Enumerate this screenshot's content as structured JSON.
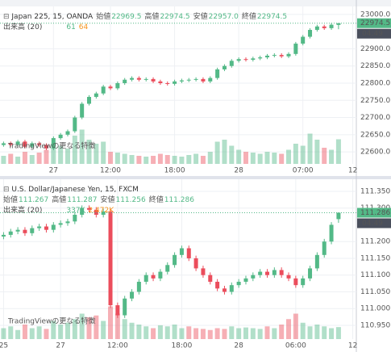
{
  "chart_data": [
    {
      "type": "candlestick",
      "title": "Japan 225, 15, OANDA",
      "ohlc_names": [
        "始値",
        "高値",
        "安値",
        "終値"
      ],
      "ohlc_labels": [
        "22969.5",
        "22974.5",
        "22957.0",
        "22974.5"
      ],
      "volume_title": "出来高 (20)",
      "volume_labels": [
        "61",
        "64"
      ],
      "promo": "TradingViewの更なる特徴",
      "last_label": "22974.5",
      "countdown": "04:49",
      "up_color": "#53b987",
      "down_color": "#eb4d5c",
      "open": [
        22620,
        22625,
        22620,
        22630,
        22615,
        22625,
        22620,
        22610,
        22640,
        22650,
        22660,
        22700,
        22740,
        22760,
        22770,
        22790,
        22785,
        22800,
        22810,
        22815,
        22810,
        22812,
        22805,
        22800,
        22798,
        22805,
        22808,
        22810,
        22812,
        22805,
        22815,
        22840,
        22850,
        22865,
        22870,
        22868,
        22872,
        22875,
        22880,
        22882,
        22878,
        22885,
        22915,
        22935,
        22955,
        22965,
        22960,
        22969.5
      ],
      "high": [
        22630,
        22630,
        22635,
        22635,
        22630,
        22630,
        22625,
        22645,
        22655,
        22665,
        22705,
        22745,
        22765,
        22775,
        22795,
        22795,
        22805,
        22815,
        22820,
        22820,
        22817,
        22817,
        22810,
        22805,
        22810,
        22813,
        22815,
        22817,
        22817,
        22820,
        22845,
        22855,
        22870,
        22875,
        22875,
        22877,
        22880,
        22885,
        22887,
        22887,
        22890,
        22920,
        22940,
        22960,
        22970,
        22970,
        22975,
        22974.5
      ],
      "low": [
        22615,
        22615,
        22615,
        22610,
        22610,
        22615,
        22605,
        22605,
        22635,
        22645,
        22655,
        22695,
        22735,
        22755,
        22765,
        22780,
        22780,
        22795,
        22805,
        22805,
        22805,
        22800,
        22795,
        22793,
        22793,
        22800,
        22803,
        22805,
        22800,
        22800,
        22810,
        22835,
        22845,
        22860,
        22863,
        22863,
        22867,
        22870,
        22875,
        22873,
        22873,
        22880,
        22910,
        22930,
        22950,
        22955,
        22955,
        22957
      ],
      "close": [
        22625,
        22620,
        22630,
        22615,
        22625,
        22620,
        22610,
        22640,
        22650,
        22660,
        22700,
        22740,
        22760,
        22770,
        22790,
        22785,
        22800,
        22810,
        22815,
        22810,
        22812,
        22805,
        22800,
        22798,
        22805,
        22808,
        22810,
        22812,
        22805,
        22815,
        22840,
        22850,
        22865,
        22870,
        22868,
        22872,
        22875,
        22880,
        22882,
        22878,
        22885,
        22915,
        22935,
        22955,
        22965,
        22960,
        22970,
        22974.5
      ],
      "volume": [
        20,
        25,
        18,
        30,
        22,
        28,
        35,
        40,
        45,
        38,
        70,
        85,
        60,
        50,
        55,
        30,
        28,
        25,
        22,
        20,
        18,
        20,
        25,
        22,
        20,
        18,
        22,
        25,
        20,
        30,
        55,
        60,
        45,
        35,
        30,
        28,
        25,
        30,
        28,
        25,
        35,
        50,
        45,
        75,
        60,
        40,
        35,
        61
      ],
      "vlim": [
        0,
        100
      ],
      "ylim": [
        22565,
        23042
      ],
      "yticks": [
        {
          "value": 23000,
          "label": "23000.0"
        },
        {
          "value": 22900,
          "label": "22900.0"
        },
        {
          "value": 22850,
          "label": "22850.0"
        },
        {
          "value": 22800,
          "label": "22800.0"
        },
        {
          "value": 22750,
          "label": "22750.0"
        },
        {
          "value": 22700,
          "label": "22700.0"
        },
        {
          "value": 22650,
          "label": "22650.0"
        },
        {
          "value": 22600,
          "label": "22600.0"
        }
      ],
      "xlim": [
        -0.5,
        49.5
      ],
      "xticks": [
        {
          "value": 7,
          "label": "27"
        },
        {
          "value": 15,
          "label": "12:00"
        },
        {
          "value": 24,
          "label": "18:00"
        },
        {
          "value": 33,
          "label": "28"
        },
        {
          "value": 42,
          "label": "07:00"
        },
        {
          "value": 49,
          "label": "12"
        }
      ]
    },
    {
      "type": "candlestick",
      "title": "U.S. Dollar/Japanese Yen, 15, FXCM",
      "ohlc_names": [
        "始値",
        "高値",
        "安値",
        "終値"
      ],
      "ohlc_labels": [
        "111.267",
        "111.287",
        "111.256",
        "111.286"
      ],
      "volume_title": "出来高 (20)",
      "volume_labels": [
        "337K",
        "2.472K"
      ],
      "promo": "TradingViewの更なる特徴",
      "last_label": "111.286",
      "countdown": "04:49",
      "up_color": "#53b987",
      "down_color": "#eb4d5c",
      "open": [
        111.215,
        111.22,
        111.23,
        111.235,
        111.225,
        111.24,
        111.245,
        111.235,
        111.25,
        111.255,
        111.26,
        111.28,
        111.3,
        111.295,
        111.28,
        111.29,
        111.01,
        110.98,
        111.03,
        111.05,
        111.08,
        111.1,
        111.09,
        111.11,
        111.13,
        111.16,
        111.18,
        111.15,
        111.12,
        111.1,
        111.08,
        111.06,
        111.05,
        111.07,
        111.08,
        111.09,
        111.1,
        111.11,
        111.1,
        111.115,
        111.1,
        111.09,
        111.07,
        111.09,
        111.12,
        111.16,
        111.2,
        111.267
      ],
      "high": [
        111.228,
        111.238,
        111.243,
        111.243,
        111.248,
        111.253,
        111.253,
        111.258,
        111.263,
        111.268,
        111.288,
        111.308,
        111.308,
        111.303,
        111.298,
        111.298,
        111.018,
        111.038,
        111.058,
        111.088,
        111.108,
        111.108,
        111.118,
        111.138,
        111.168,
        111.188,
        111.188,
        111.158,
        111.128,
        111.108,
        111.088,
        111.068,
        111.078,
        111.088,
        111.098,
        111.108,
        111.118,
        111.118,
        111.123,
        111.123,
        111.108,
        111.098,
        111.098,
        111.128,
        111.168,
        111.208,
        111.258,
        111.287
      ],
      "low": [
        111.207,
        111.212,
        111.222,
        111.217,
        111.217,
        111.232,
        111.227,
        111.227,
        111.242,
        111.247,
        111.252,
        111.272,
        111.287,
        111.272,
        111.272,
        111.002,
        110.972,
        110.972,
        111.022,
        111.042,
        111.072,
        111.082,
        111.082,
        111.102,
        111.122,
        111.152,
        111.142,
        111.112,
        111.092,
        111.072,
        111.052,
        111.042,
        111.042,
        111.062,
        111.072,
        111.082,
        111.092,
        111.092,
        111.092,
        111.092,
        111.082,
        111.062,
        111.062,
        111.082,
        111.112,
        111.152,
        111.192,
        111.256
      ],
      "close": [
        111.22,
        111.23,
        111.235,
        111.225,
        111.24,
        111.245,
        111.235,
        111.25,
        111.255,
        111.26,
        111.28,
        111.3,
        111.295,
        111.28,
        111.29,
        111.01,
        110.98,
        111.03,
        111.05,
        111.08,
        111.1,
        111.09,
        111.11,
        111.13,
        111.16,
        111.18,
        111.15,
        111.12,
        111.1,
        111.08,
        111.06,
        111.05,
        111.07,
        111.08,
        111.09,
        111.1,
        111.11,
        111.1,
        111.115,
        111.1,
        111.09,
        111.07,
        111.09,
        111.12,
        111.16,
        111.2,
        111.25,
        111.286
      ],
      "volume": [
        30,
        35,
        25,
        40,
        30,
        35,
        28,
        50,
        40,
        45,
        55,
        70,
        60,
        65,
        50,
        90,
        70,
        55,
        45,
        40,
        35,
        30,
        38,
        35,
        40,
        30,
        35,
        30,
        28,
        25,
        30,
        28,
        35,
        30,
        32,
        30,
        28,
        35,
        30,
        40,
        55,
        70,
        45,
        35,
        40,
        35,
        30,
        33
      ],
      "vlim": [
        0,
        100
      ],
      "ylim": [
        110.909,
        111.386
      ],
      "yticks": [
        {
          "value": 111.35,
          "label": "111.350"
        },
        {
          "value": 111.3,
          "label": "111.300"
        },
        {
          "value": 111.2,
          "label": "111.200"
        },
        {
          "value": 111.15,
          "label": "111.150"
        },
        {
          "value": 111.1,
          "label": "111.100"
        },
        {
          "value": 111.05,
          "label": "111.050"
        },
        {
          "value": 111,
          "label": "111.000"
        },
        {
          "value": 110.95,
          "label": "110.950"
        }
      ],
      "xlim": [
        -0.5,
        49.5
      ],
      "xticks": [
        {
          "value": 0,
          "label": "25"
        },
        {
          "value": 8,
          "label": "27"
        },
        {
          "value": 16,
          "label": "12:00"
        },
        {
          "value": 25,
          "label": "18:00"
        },
        {
          "value": 33,
          "label": "28"
        },
        {
          "value": 41,
          "label": "06:00"
        },
        {
          "value": 49,
          "label": "12"
        }
      ]
    }
  ]
}
